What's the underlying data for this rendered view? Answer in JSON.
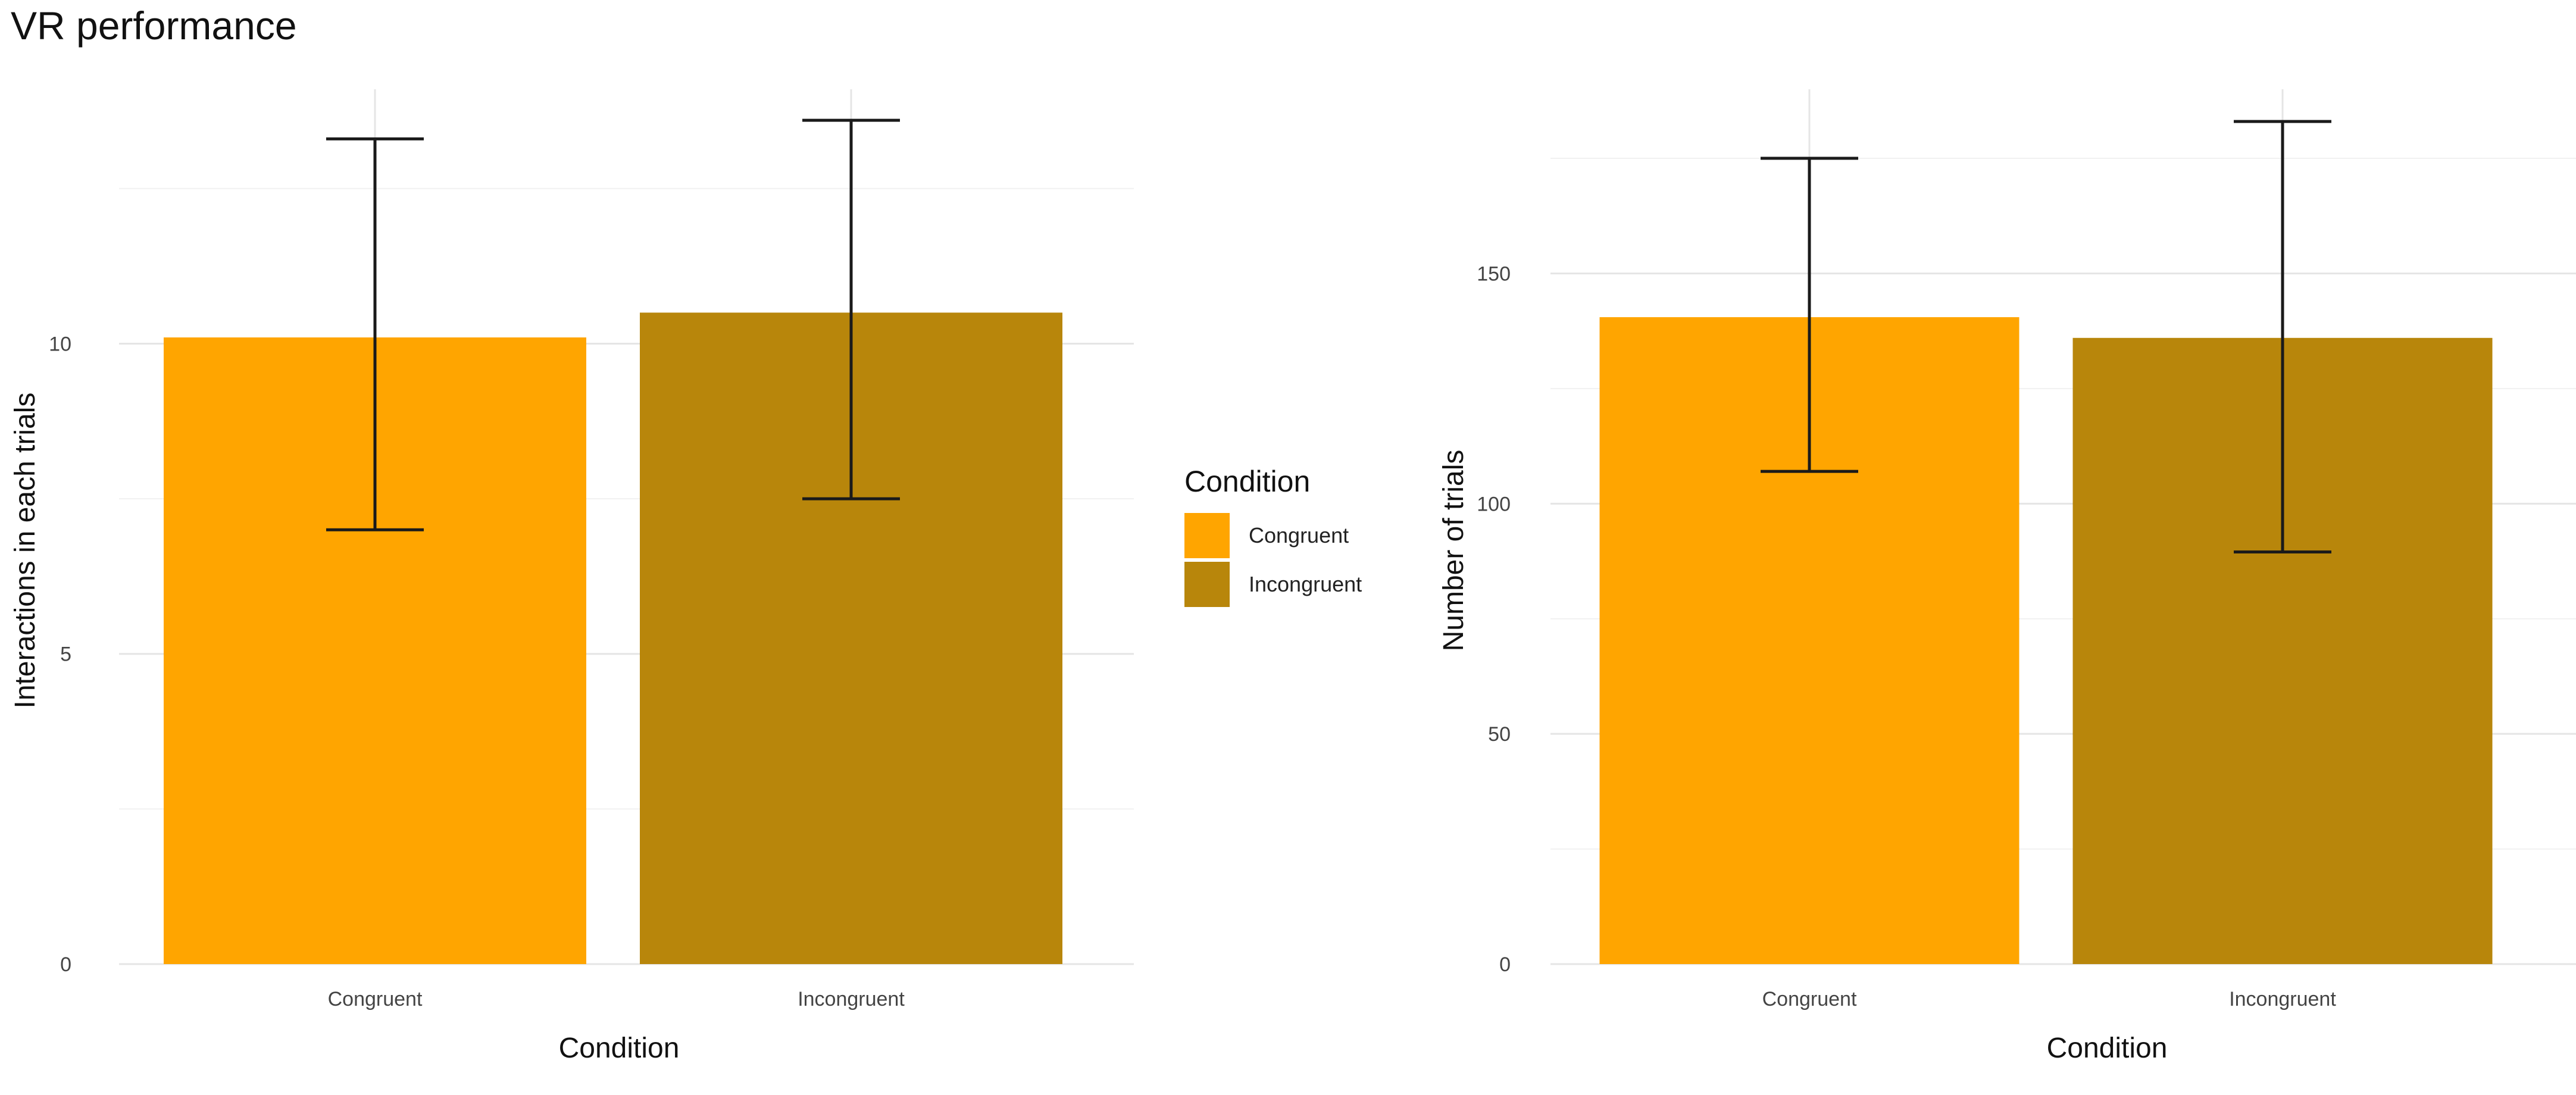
{
  "figure_title": "VR performance",
  "legend": {
    "title": "Condition",
    "entries": [
      {
        "label": "Congruent",
        "color": "#FFA500"
      },
      {
        "label": "Incongruent",
        "color": "#B8860B"
      }
    ]
  },
  "chart_data": [
    {
      "type": "bar",
      "title": "VR performance",
      "xlabel": "Condition",
      "ylabel": "Interactions in each trials",
      "categories": [
        "Congruent",
        "Incongruent"
      ],
      "values": [
        10.1,
        10.5
      ],
      "error_low": [
        7.0,
        7.5
      ],
      "error_high": [
        13.3,
        13.6
      ],
      "colors": [
        "#FFA500",
        "#B8860B"
      ],
      "ylim": [
        0,
        14.1
      ],
      "yticks": [
        0,
        5,
        10
      ],
      "minor_yticks": [
        2.5,
        7.5,
        12.5
      ],
      "grid": true
    },
    {
      "type": "bar",
      "title": "",
      "xlabel": "Condition",
      "ylabel": "Number of trials",
      "categories": [
        "Congruent",
        "Incongruent"
      ],
      "values": [
        140.5,
        136
      ],
      "error_low": [
        107,
        89.5
      ],
      "error_high": [
        175,
        183
      ],
      "colors": [
        "#FFA500",
        "#B8860B"
      ],
      "ylim": [
        0,
        190
      ],
      "yticks": [
        0,
        50,
        100,
        150
      ],
      "minor_yticks": [
        25,
        75,
        125,
        175
      ],
      "grid": true
    }
  ]
}
